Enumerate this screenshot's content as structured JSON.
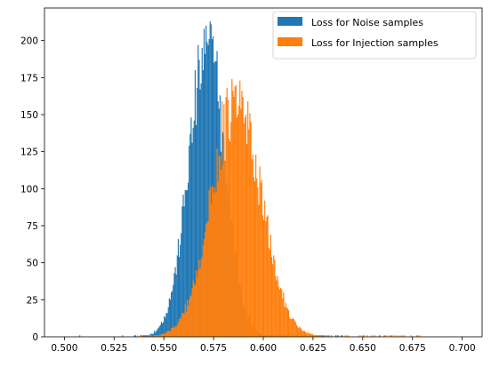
{
  "chart_data": {
    "type": "histogram",
    "title": "",
    "xlabel": "",
    "ylabel": "",
    "xlim": [
      0.49,
      0.71
    ],
    "ylim": [
      0,
      222
    ],
    "grid": false,
    "legend_placement": "top-right",
    "x_ticks": [
      0.5,
      0.525,
      0.55,
      0.575,
      0.6,
      0.625,
      0.65,
      0.675,
      0.7
    ],
    "x_tick_labels": [
      "0.500",
      "0.525",
      "0.550",
      "0.575",
      "0.600",
      "0.625",
      "0.650",
      "0.675",
      "0.700"
    ],
    "y_ticks": [
      0,
      25,
      50,
      75,
      100,
      125,
      150,
      175,
      200
    ],
    "y_tick_labels": [
      "0",
      "25",
      "50",
      "75",
      "100",
      "125",
      "150",
      "175",
      "200"
    ],
    "bin_width": 0.0005,
    "series": [
      {
        "name": "Loss for Noise samples",
        "color": "#1f77b4",
        "distribution": {
          "mean": 0.5715,
          "std": 0.0092,
          "peak": 190
        },
        "bin_range": [
          0.5,
          0.7
        ],
        "min_positive_range": [
          0.535,
          0.64
        ],
        "notable_peaks": [
          [
            0.5735,
            211
          ],
          [
            0.5745,
            203
          ],
          [
            0.572,
            197
          ],
          [
            0.5765,
            193
          ],
          [
            0.5755,
            186
          ]
        ]
      },
      {
        "name": "Loss for Injection samples",
        "color": "#ff7f0e",
        "distribution": {
          "mean": 0.5865,
          "std": 0.0125,
          "peak": 157
        },
        "bin_range": [
          0.5,
          0.7
        ],
        "min_positive_range": [
          0.537,
          0.68
        ],
        "notable_peaks": [
          [
            0.5845,
            166
          ],
          [
            0.5895,
            162
          ],
          [
            0.579,
            159
          ],
          [
            0.582,
            160
          ]
        ]
      }
    ]
  }
}
